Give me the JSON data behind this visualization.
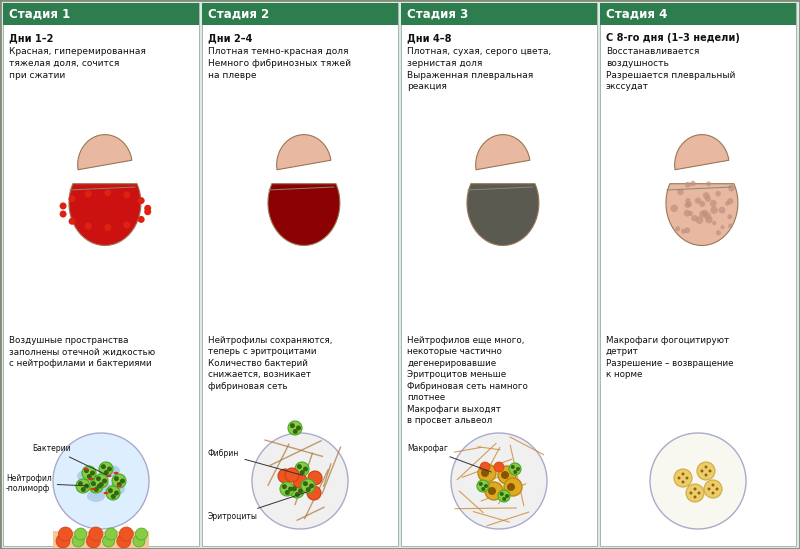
{
  "bg_color": "#d4ede8",
  "panel_bg": "#ffffff",
  "header_bg": "#2e7d4f",
  "header_text_color": "#ffffff",
  "body_text_color": "#111111",
  "stages": [
    {
      "title": "Стадия 1",
      "days": "Дни 1–2",
      "top_desc": "Красная, гиперемированная\nтяжелая доля, сочится\nпри сжатии",
      "bottom_desc": "Воздушные пространства\nзаполнены отечной жидкостью\nс нейтрофилами и бактериями",
      "labels": [
        "Бактерии",
        "Нейтрофил\n-полиморф"
      ],
      "lung_upper_color": "#e8b8a0",
      "lung_lower_color": "#cc1111",
      "circle_style": "stage1"
    },
    {
      "title": "Стадия 2",
      "days": "Дни 2–4",
      "top_desc": "Плотная темно-красная доля\nНемного фибринозных тяжей\nна плевре",
      "bottom_desc": "Нейтрофилы сохраняются,\nтеперь с эритроцитами\nКоличество бактерий\nснижается, возникает\nфибриновая сеть",
      "labels": [
        "Фибрин",
        "Эритроциты"
      ],
      "lung_upper_color": "#e8b8a0",
      "lung_lower_color": "#8b0000",
      "circle_style": "stage2"
    },
    {
      "title": "Стадия 3",
      "days": "Дни 4–8",
      "top_desc": "Плотная, сухая, серого цвета,\nзернистая доля\nВыраженная плевральная\nреакция",
      "bottom_desc": "Нейтрофилов еще много,\nнекоторые частично\nдегенерировавшие\nЭритроцитов меньше\nФибриновая сеть намного\nплотнее\nМакрофаги выходят\nв просвет альвеол",
      "labels": [
        "Макрофаг"
      ],
      "lung_upper_color": "#e8b8a0",
      "lung_lower_color": "#5a5a50",
      "circle_style": "stage3"
    },
    {
      "title": "Стадия 4",
      "days": "С 8-го дня (1–3 недели)",
      "top_desc": "Восстанавливается\nвоздушность\nРазрешается плевральный\nэкссудат",
      "bottom_desc": "Макрофаги фогоцитируют\nдетрит\nРазрешение – возвращение\nк норме",
      "labels": [],
      "lung_upper_color": "#e8b8a0",
      "lung_lower_color": "#e8b8a0",
      "circle_style": "stage4"
    }
  ]
}
